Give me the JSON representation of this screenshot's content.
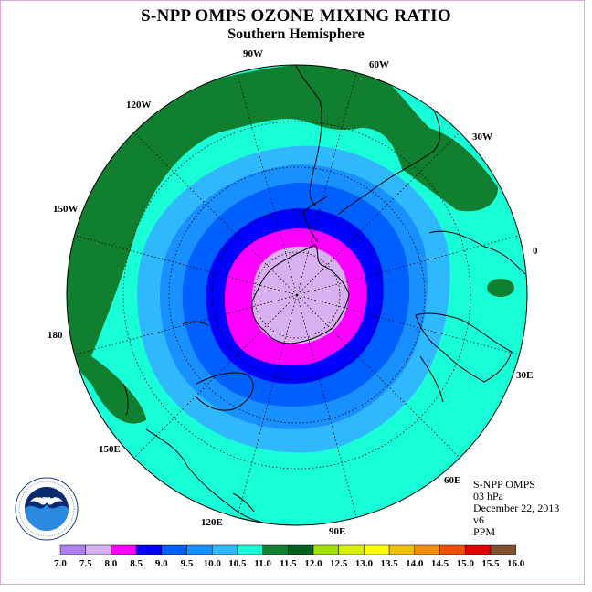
{
  "title": "S-NPP OMPS OZONE MIXING RATIO",
  "subtitle": "Southern Hemisphere",
  "info": {
    "instrument": "S-NPP OMPS",
    "level": "03 hPa",
    "date": "December 22, 2013",
    "version": "v6",
    "units": "PPM"
  },
  "logo_text": "NOAA",
  "colors": {
    "bar": [
      "#b080f0",
      "#d8b0f0",
      "#ff00ff",
      "#0000ff",
      "#0060ff",
      "#1890ff",
      "#30b8ff",
      "#18ffd8",
      "#108030",
      "#006020",
      "#a0e000",
      "#d8f000",
      "#ffff00",
      "#f0c000",
      "#f09000",
      "#f05000",
      "#e00000",
      "#805030"
    ],
    "ring_8_5": "#ff00ff",
    "ring_9_0": "#0000ff",
    "ring_9_5": "#0060ff",
    "ring_10_0": "#1890ff",
    "ring_10_5": "#30b8ff",
    "fill_11_0": "#18ffd8",
    "fill_11_5": "#108030",
    "core": "#d8b0f0"
  },
  "colorbar_labels": [
    "7.0",
    "7.5",
    "8.0",
    "8.5",
    "9.0",
    "9.5",
    "10.0",
    "10.5",
    "11.0",
    "11.5",
    "12.0",
    "12.5",
    "13.0",
    "13.5",
    "14.0",
    "14.5",
    "15.0",
    "15.5",
    "16.0"
  ],
  "longitude_labels": {
    "w90": "90W",
    "w60": "60W",
    "w30": "30W",
    "e0": "0",
    "e30": "30E",
    "e60": "60E",
    "e90": "90E",
    "e120": "120E",
    "e150": "150E",
    "d180": "180",
    "w150": "150W",
    "w120": "120W"
  }
}
